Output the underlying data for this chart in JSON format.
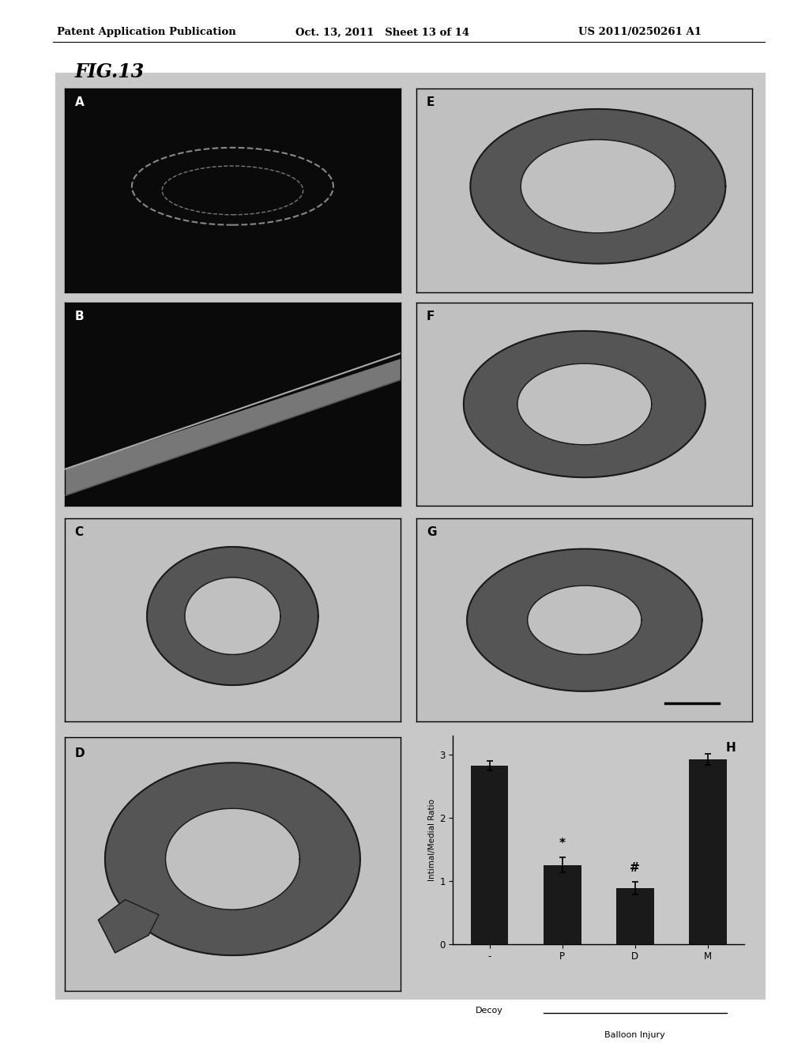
{
  "header_left": "Patent Application Publication",
  "header_center": "Oct. 13, 2011   Sheet 13 of 14",
  "header_right": "US 2011/0250261 A1",
  "fig_label": "FIG.13",
  "page_bg": "#ffffff",
  "figure_bg": "#c8c8c8",
  "bar_categories": [
    "-",
    "P",
    "D",
    "M"
  ],
  "bar_values": [
    2.82,
    1.25,
    0.88,
    2.92
  ],
  "bar_errors": [
    0.08,
    0.12,
    0.1,
    0.09
  ],
  "bar_color": "#1a1a1a",
  "ylabel": "Intimal/Medial Ratio",
  "xlabel_balloon": "Balloon Injury",
  "xlabel_decoy": "Decoy",
  "ylim": [
    0,
    3.3
  ],
  "yticks": [
    0,
    1,
    2,
    3
  ],
  "panel_h_label": "H",
  "dark_bg": "#0a0a0a",
  "light_bg": "#c0c0c0",
  "ring_fill": "#555555"
}
